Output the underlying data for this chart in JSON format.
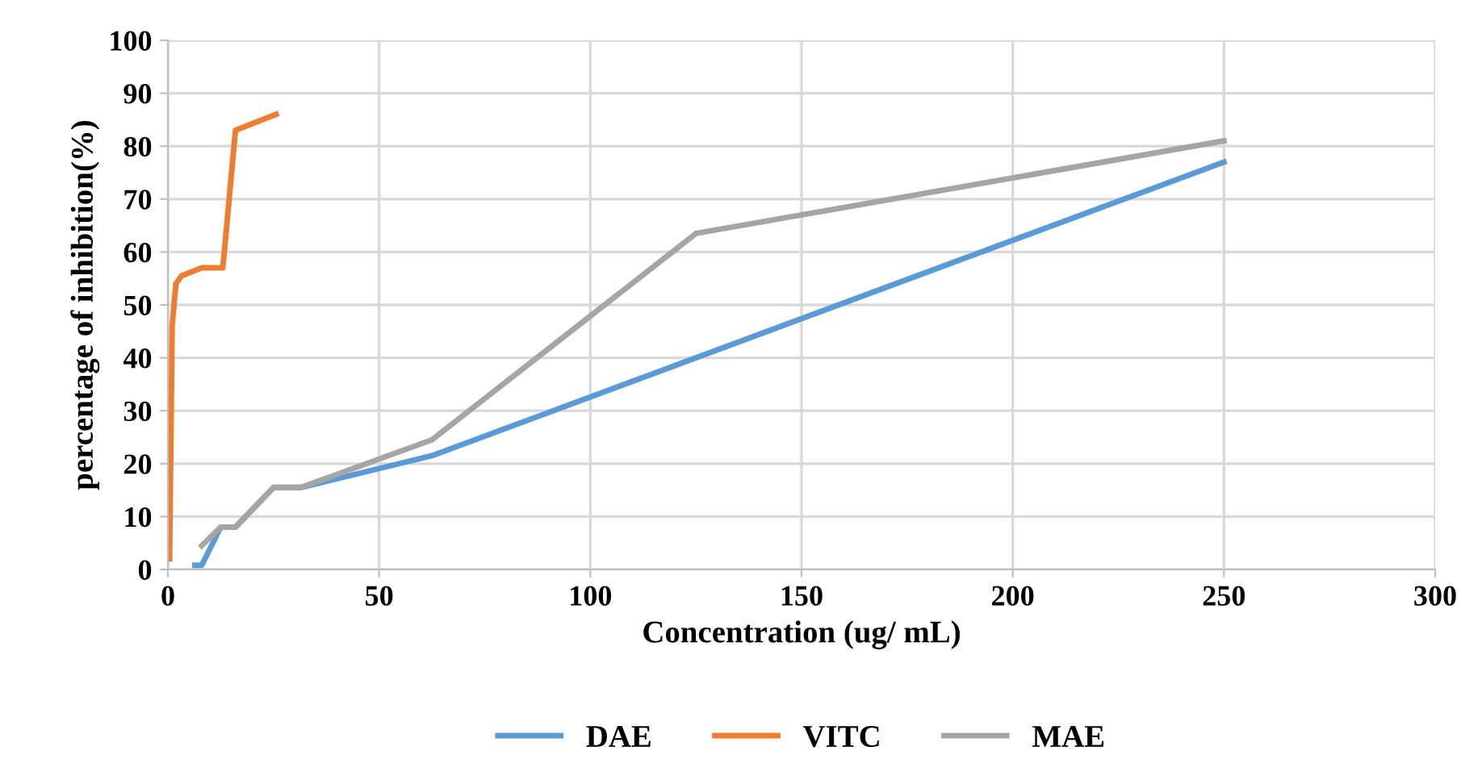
{
  "chart_data": {
    "type": "line",
    "xlabel": "Concentration (ug/ mL)",
    "ylabel": "percentage of inhibition(%)",
    "xlim": [
      0,
      300
    ],
    "xticks": [
      0,
      50,
      100,
      150,
      200,
      250,
      300
    ],
    "ylim": [
      0,
      100
    ],
    "yticks": [
      0,
      10,
      20,
      30,
      40,
      50,
      60,
      70,
      80,
      90,
      100
    ],
    "grid": true,
    "legend": "bottom",
    "marker": "none",
    "line_style": "solid",
    "series": [
      {
        "name": "DAE",
        "color": "#5b9bd5",
        "x": [
          6.4,
          8,
          12.5,
          16,
          25,
          31.5,
          62.5,
          250
        ],
        "values": [
          0.8,
          0.8,
          8,
          8,
          15.5,
          15.5,
          21.5,
          77
        ]
      },
      {
        "name": "VITC",
        "color": "#ed7d31",
        "x": [
          0.4,
          1,
          1.9,
          3.2,
          8,
          13,
          16,
          25.6
        ],
        "values": [
          2,
          46,
          54,
          55.5,
          57,
          57,
          83,
          86
        ]
      },
      {
        "name": "MAE",
        "color": "#a5a5a5",
        "x": [
          8,
          12.5,
          16,
          25,
          31.5,
          62.5,
          125,
          250
        ],
        "values": [
          4.5,
          8,
          8,
          15.5,
          15.5,
          24.5,
          63.5,
          81
        ]
      }
    ]
  }
}
